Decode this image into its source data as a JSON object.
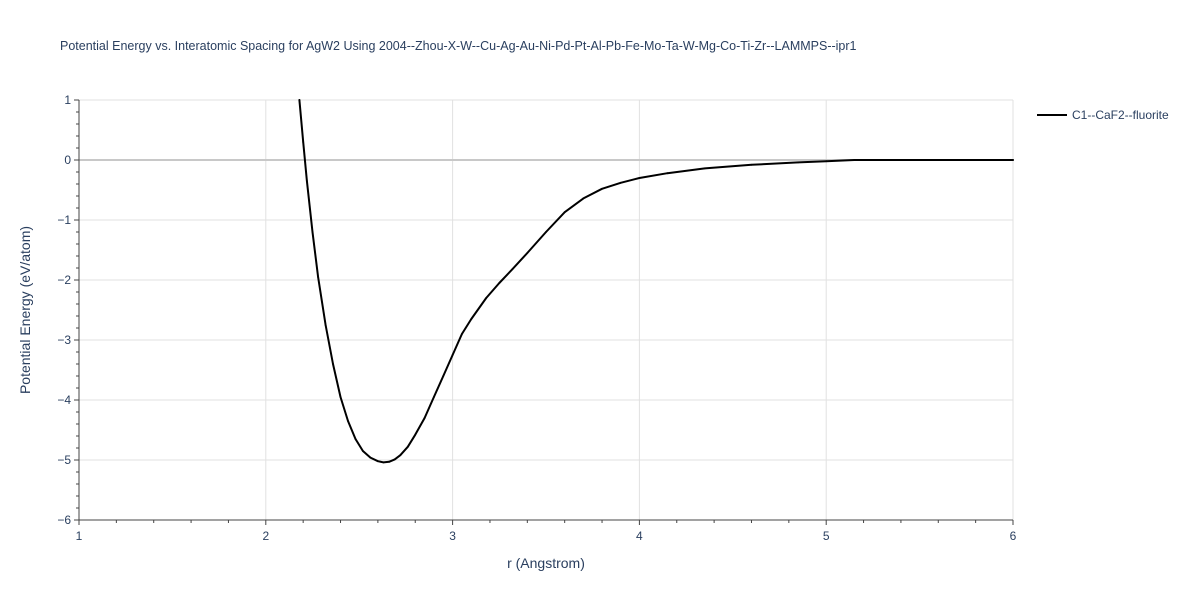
{
  "chart_data": {
    "type": "line",
    "title": "Potential Energy vs. Interatomic Spacing for AgW2 Using 2004--Zhou-X-W--Cu-Ag-Au-Ni-Pd-Pt-Al-Pb-Fe-Mo-Ta-W-Mg-Co-Ti-Zr--LAMMPS--ipr1",
    "xlabel": "r (Angstrom)",
    "ylabel": "Potential Energy (eV/atom)",
    "xlim": [
      1,
      6
    ],
    "ylim": [
      -6,
      1
    ],
    "xticks": [
      1,
      2,
      3,
      4,
      5,
      6
    ],
    "xtick_labels": [
      "1",
      "2",
      "3",
      "4",
      "5",
      "6"
    ],
    "yticks": [
      1,
      0,
      -1,
      -2,
      -3,
      -4,
      -5,
      -6
    ],
    "ytick_labels": [
      "1",
      "0",
      "−1",
      "−2",
      "−3",
      "−4",
      "−5",
      "−6"
    ],
    "grid": true,
    "legend_position": "top-right",
    "series": [
      {
        "name": "C1--CaF2--fluorite",
        "color": "#000000",
        "x": [
          2.18,
          2.2,
          2.22,
          2.25,
          2.28,
          2.32,
          2.36,
          2.4,
          2.44,
          2.48,
          2.52,
          2.56,
          2.6,
          2.63,
          2.66,
          2.69,
          2.72,
          2.76,
          2.8,
          2.85,
          2.9,
          2.95,
          3.0,
          3.05,
          3.1,
          3.18,
          3.25,
          3.32,
          3.4,
          3.5,
          3.6,
          3.7,
          3.8,
          3.9,
          4.0,
          4.15,
          4.35,
          4.6,
          4.85,
          5.0,
          5.15,
          5.4,
          5.7,
          6.0
        ],
        "y": [
          1.0,
          0.3,
          -0.35,
          -1.2,
          -1.95,
          -2.75,
          -3.4,
          -3.95,
          -4.35,
          -4.65,
          -4.85,
          -4.96,
          -5.02,
          -5.04,
          -5.03,
          -4.99,
          -4.92,
          -4.78,
          -4.58,
          -4.3,
          -3.95,
          -3.6,
          -3.25,
          -2.9,
          -2.65,
          -2.3,
          -2.05,
          -1.82,
          -1.55,
          -1.2,
          -0.87,
          -0.64,
          -0.48,
          -0.38,
          -0.3,
          -0.22,
          -0.14,
          -0.08,
          -0.04,
          -0.02,
          0.0,
          0.0,
          0.0,
          0.0
        ]
      }
    ]
  }
}
